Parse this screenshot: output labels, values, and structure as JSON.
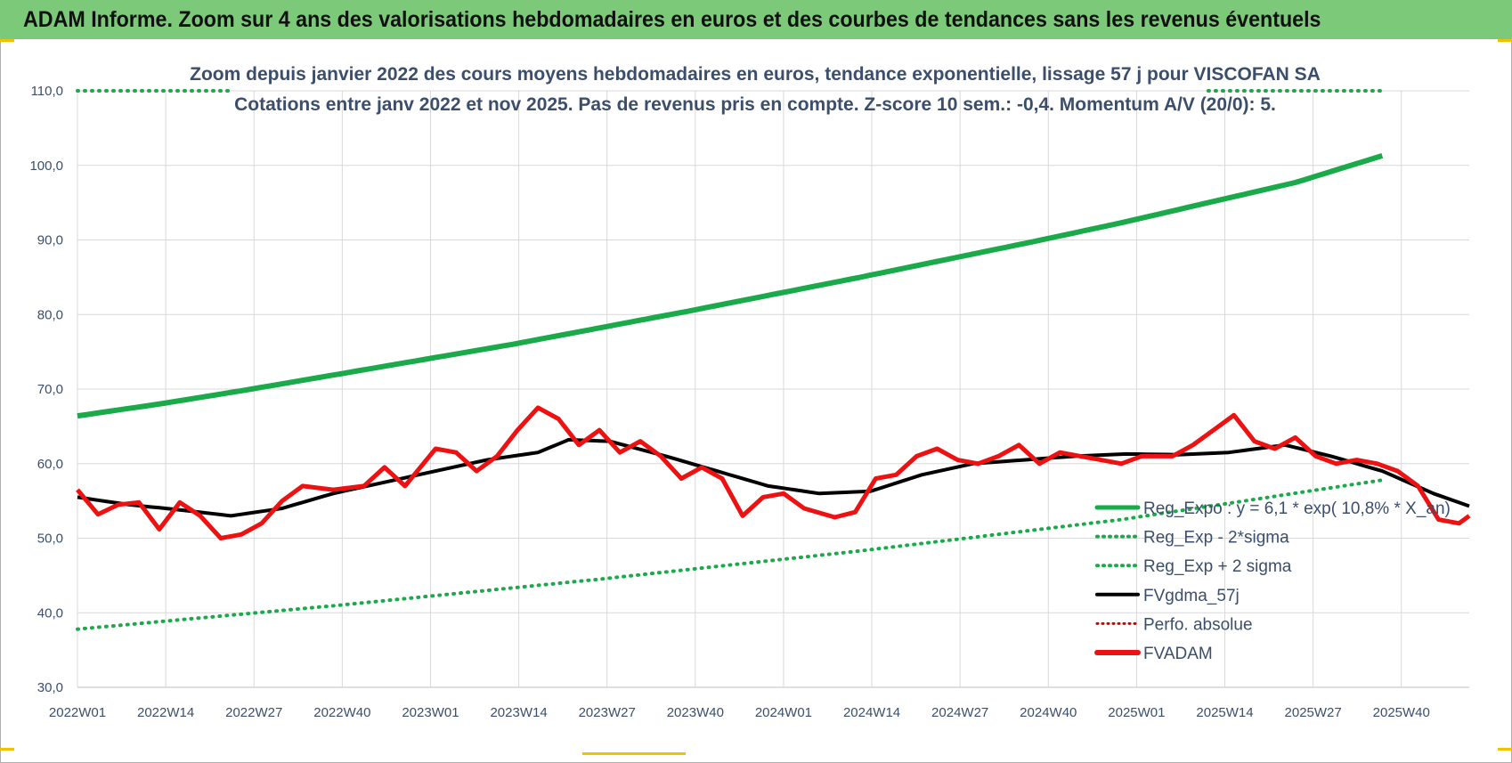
{
  "banner": {
    "title": "ADAM Informe. Zoom sur 4 ans des valorisations hebdomadaires en euros et des courbes de tendances sans les revenus éventuels"
  },
  "colors": {
    "banner": "#7cc97a",
    "reg_expo": "#1aaa4a",
    "fvgdma": "#000000",
    "fvadam": "#ee1111",
    "perfo": "#cc0000",
    "grid": "#d9d9d9",
    "text": "#3b4e6b"
  },
  "chart_data": {
    "type": "line",
    "title_lines": [
      "Zoom depuis janvier 2022 des cours moyens hebdomadaires en euros, tendance exponentielle, lissage 57 j pour VISCOFAN SA",
      "Cotations entre janv 2022 et nov 2025. Pas de revenus pris en compte. Z-score 10 sem.: -0,4.  Momentum A/V (20/0): 5."
    ],
    "x_tick_labels": [
      "2022W01",
      "2022W14",
      "2022W27",
      "2022W40",
      "2023W01",
      "2023W14",
      "2023W27",
      "2023W40",
      "2024W01",
      "2024W14",
      "2024W27",
      "2024W40",
      "2025W01",
      "2025W14",
      "2025W27",
      "2025W40"
    ],
    "weeks_total": 205,
    "ylim": [
      30,
      110
    ],
    "y_tick_labels": [
      "30,0",
      "40,0",
      "50,0",
      "60,0",
      "70,0",
      "80,0",
      "90,0",
      "100,0",
      "110,0"
    ],
    "grid": true,
    "legend_position": "lower-right",
    "series": [
      {
        "name": "Reg_Expo : y = 6,1 * exp( 10,8% *  X_an)",
        "style": "solid",
        "anchors": [
          [
            0,
            66.4
          ],
          [
            17,
            68.1
          ],
          [
            34,
            70.0
          ],
          [
            51,
            72.0
          ],
          [
            68,
            74.0
          ],
          [
            85,
            76.0
          ],
          [
            102,
            78.2
          ],
          [
            119,
            80.4
          ],
          [
            136,
            82.7
          ],
          [
            153,
            85.0
          ],
          [
            170,
            87.4
          ],
          [
            187,
            89.8
          ],
          [
            204,
            92.3
          ],
          [
            221,
            95.0
          ],
          [
            238,
            97.7
          ],
          [
            255,
            101.3
          ]
        ]
      },
      {
        "name": "Reg_Exp - 2*sigma",
        "style": "dotted",
        "anchors": [
          [
            0,
            37.8
          ],
          [
            51,
            41.0
          ],
          [
            102,
            44.5
          ],
          [
            153,
            48.3
          ],
          [
            204,
            52.5
          ],
          [
            255,
            57.8
          ]
        ]
      },
      {
        "name": "Reg_Exp + 2 sigma",
        "style": "dotted",
        "visible_segments": [
          [
            0,
            30
          ],
          [
            221,
            255
          ]
        ],
        "constant": 110.0
      },
      {
        "name": "FVgdma_57j",
        "style": "solid",
        "anchors": [
          [
            0,
            55.5
          ],
          [
            10,
            54.5
          ],
          [
            20,
            53.8
          ],
          [
            30,
            53.0
          ],
          [
            40,
            54.0
          ],
          [
            50,
            56.0
          ],
          [
            60,
            57.5
          ],
          [
            70,
            59.0
          ],
          [
            80,
            60.5
          ],
          [
            90,
            61.5
          ],
          [
            96,
            63.2
          ],
          [
            104,
            63.0
          ],
          [
            115,
            61.0
          ],
          [
            125,
            59.0
          ],
          [
            135,
            57.0
          ],
          [
            145,
            56.0
          ],
          [
            155,
            56.3
          ],
          [
            165,
            58.5
          ],
          [
            175,
            60.0
          ],
          [
            185,
            60.5
          ],
          [
            195,
            61.0
          ],
          [
            205,
            61.3
          ],
          [
            215,
            61.2
          ],
          [
            225,
            61.5
          ],
          [
            236,
            62.5
          ],
          [
            245,
            61.0
          ],
          [
            255,
            59.0
          ],
          [
            265,
            56.0
          ],
          [
            272,
            54.3
          ]
        ]
      },
      {
        "name": "Perfo. absolue",
        "style": "dotted",
        "anchors": []
      },
      {
        "name": "FVADAM",
        "style": "solid",
        "anchors": [
          [
            0,
            56.5
          ],
          [
            4,
            53.2
          ],
          [
            8,
            54.5
          ],
          [
            12,
            54.8
          ],
          [
            16,
            51.2
          ],
          [
            20,
            54.8
          ],
          [
            24,
            53.0
          ],
          [
            28,
            50.0
          ],
          [
            32,
            50.5
          ],
          [
            36,
            52.0
          ],
          [
            40,
            55.0
          ],
          [
            44,
            57.0
          ],
          [
            50,
            56.5
          ],
          [
            56,
            57.0
          ],
          [
            60,
            59.5
          ],
          [
            64,
            57.0
          ],
          [
            70,
            62.0
          ],
          [
            74,
            61.5
          ],
          [
            78,
            59.0
          ],
          [
            82,
            61.0
          ],
          [
            86,
            64.5
          ],
          [
            90,
            67.5
          ],
          [
            94,
            66.0
          ],
          [
            98,
            62.5
          ],
          [
            102,
            64.5
          ],
          [
            106,
            61.5
          ],
          [
            110,
            63.0
          ],
          [
            114,
            61.0
          ],
          [
            118,
            58.0
          ],
          [
            122,
            59.5
          ],
          [
            126,
            58.0
          ],
          [
            130,
            53.0
          ],
          [
            134,
            55.5
          ],
          [
            138,
            56.0
          ],
          [
            142,
            54.0
          ],
          [
            148,
            52.8
          ],
          [
            152,
            53.5
          ],
          [
            156,
            58.0
          ],
          [
            160,
            58.5
          ],
          [
            164,
            61.0
          ],
          [
            168,
            62.0
          ],
          [
            172,
            60.5
          ],
          [
            176,
            60.0
          ],
          [
            180,
            61.0
          ],
          [
            184,
            62.5
          ],
          [
            188,
            60.0
          ],
          [
            192,
            61.5
          ],
          [
            196,
            61.0
          ],
          [
            200,
            60.5
          ],
          [
            204,
            60.0
          ],
          [
            208,
            61.0
          ],
          [
            214,
            61.0
          ],
          [
            218,
            62.5
          ],
          [
            222,
            64.5
          ],
          [
            226,
            66.5
          ],
          [
            230,
            63.0
          ],
          [
            234,
            62.0
          ],
          [
            238,
            63.5
          ],
          [
            242,
            61.0
          ],
          [
            246,
            60.0
          ],
          [
            250,
            60.5
          ],
          [
            254,
            60.0
          ],
          [
            258,
            59.0
          ],
          [
            262,
            57.0
          ],
          [
            266,
            52.5
          ],
          [
            270,
            52.0
          ],
          [
            272,
            53.0
          ]
        ]
      }
    ]
  }
}
